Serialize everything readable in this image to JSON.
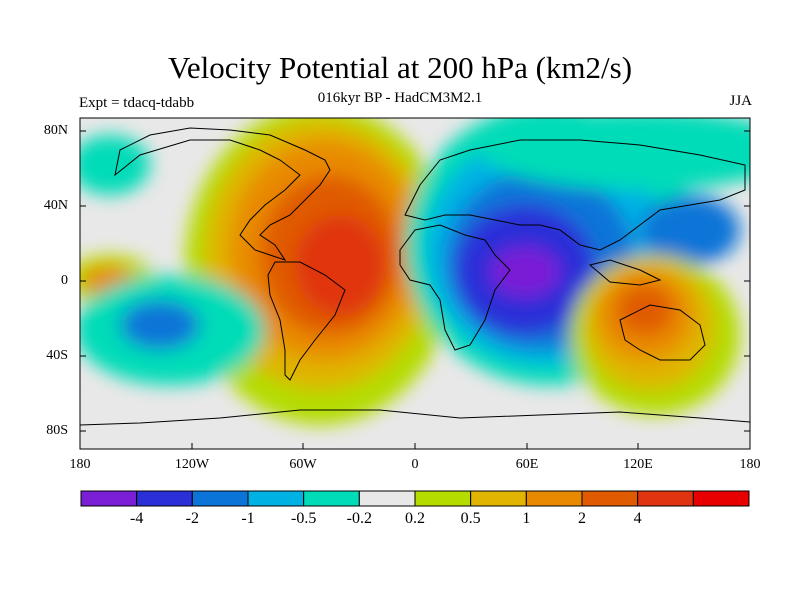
{
  "title": "Velocity Potential at 200 hPa (km2/s)",
  "subtitle": "016kyr BP - HadCM3M2.1",
  "expt_label": "Expt = tdacq-tdabb",
  "season": "JJA",
  "lat_labels": [
    "80N",
    "40N",
    "0",
    "40S",
    "80S"
  ],
  "lon_labels": [
    "180",
    "120W",
    "60W",
    "0",
    "60E",
    "120E",
    "180"
  ],
  "colorbar": {
    "colors": [
      "#7a1fd6",
      "#2b2fd8",
      "#0a74d8",
      "#00b2e4",
      "#00dcb8",
      "#e8e8e8",
      "#b4dc00",
      "#e0b400",
      "#e88a00",
      "#e05a00",
      "#e03410",
      "#e80000"
    ],
    "labels": [
      "-4",
      "-2",
      "-1",
      "-0.5",
      "-0.2",
      "0.2",
      "0.5",
      "1",
      "2",
      "4"
    ]
  }
}
